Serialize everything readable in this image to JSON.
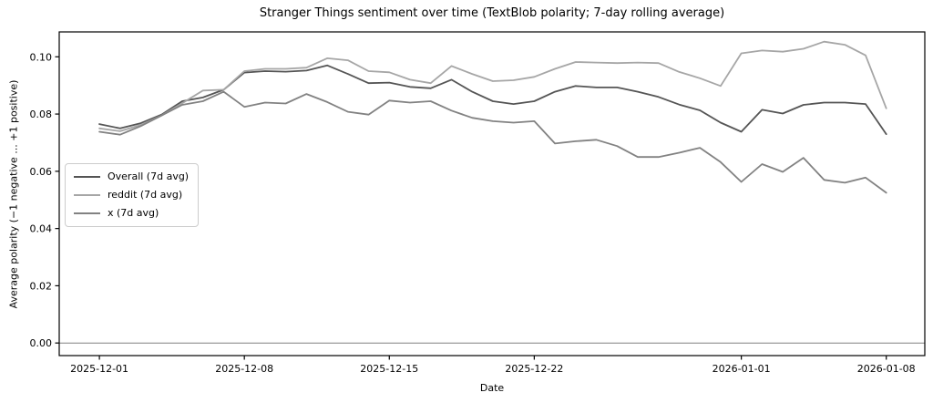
{
  "chart_data": {
    "type": "line",
    "title": "Stranger Things sentiment over time (TextBlob polarity; 7-day rolling average)",
    "xlabel": "Date",
    "ylabel": "Average polarity (−1 negative ... +1 positive)",
    "x_dates": [
      "2025-12-01",
      "2025-12-02",
      "2025-12-03",
      "2025-12-04",
      "2025-12-05",
      "2025-12-06",
      "2025-12-07",
      "2025-12-08",
      "2025-12-09",
      "2025-12-10",
      "2025-12-11",
      "2025-12-12",
      "2025-12-13",
      "2025-12-14",
      "2025-12-15",
      "2025-12-16",
      "2025-12-17",
      "2025-12-18",
      "2025-12-19",
      "2025-12-20",
      "2025-12-21",
      "2025-12-22",
      "2025-12-23",
      "2025-12-24",
      "2025-12-25",
      "2025-12-26",
      "2025-12-27",
      "2025-12-28",
      "2025-12-29",
      "2025-12-30",
      "2025-12-31",
      "2026-01-01",
      "2026-01-02",
      "2026-01-03",
      "2026-01-04",
      "2026-01-05",
      "2026-01-06",
      "2026-01-07",
      "2026-01-08"
    ],
    "series": [
      {
        "name": "Overall (7d avg)",
        "color": "#555555",
        "values": [
          0.0765,
          0.075,
          0.0768,
          0.0798,
          0.0845,
          0.0858,
          0.0885,
          0.0945,
          0.095,
          0.0948,
          0.0952,
          0.097,
          0.094,
          0.0908,
          0.091,
          0.0895,
          0.089,
          0.092,
          0.0878,
          0.0845,
          0.0835,
          0.0845,
          0.0878,
          0.0898,
          0.0893,
          0.0893,
          0.0878,
          0.086,
          0.0833,
          0.0813,
          0.077,
          0.0738,
          0.0815,
          0.0802,
          0.0832,
          0.084,
          0.084,
          0.0835,
          0.073
        ]
      },
      {
        "name": "reddit (7d avg)",
        "color": "#a6a6a6",
        "values": [
          0.075,
          0.074,
          0.0762,
          0.0795,
          0.0838,
          0.0882,
          0.0885,
          0.095,
          0.0958,
          0.0958,
          0.0962,
          0.0995,
          0.0988,
          0.095,
          0.0946,
          0.092,
          0.0908,
          0.0968,
          0.094,
          0.0915,
          0.0918,
          0.093,
          0.0958,
          0.0982,
          0.098,
          0.0978,
          0.098,
          0.0978,
          0.0947,
          0.0925,
          0.0898,
          0.1012,
          0.1022,
          0.1018,
          0.1028,
          0.1053,
          0.1042,
          0.1005,
          0.082
        ]
      },
      {
        "name": "x (7d avg)",
        "color": "#828282",
        "values": [
          0.0738,
          0.0728,
          0.0758,
          0.0795,
          0.0832,
          0.0845,
          0.0878,
          0.0825,
          0.084,
          0.0837,
          0.087,
          0.0842,
          0.0808,
          0.0798,
          0.0847,
          0.084,
          0.0845,
          0.0812,
          0.0787,
          0.0775,
          0.077,
          0.0775,
          0.0697,
          0.0705,
          0.071,
          0.0688,
          0.065,
          0.065,
          0.0665,
          0.0682,
          0.0632,
          0.0563,
          0.0625,
          0.0598,
          0.0647,
          0.057,
          0.056,
          0.0578,
          0.0525
        ]
      }
    ],
    "xticks": [
      {
        "label": "2025-12-01",
        "day": 0
      },
      {
        "label": "2025-12-08",
        "day": 7
      },
      {
        "label": "2025-12-15",
        "day": 14
      },
      {
        "label": "2025-12-22",
        "day": 21
      },
      {
        "label": "2026-01-01",
        "day": 31
      },
      {
        "label": "2026-01-08",
        "day": 38
      }
    ],
    "yticks": [
      {
        "label": "0.00",
        "value": 0.0
      },
      {
        "label": "0.02",
        "value": 0.02
      },
      {
        "label": "0.04",
        "value": 0.04
      },
      {
        "label": "0.06",
        "value": 0.06
      },
      {
        "label": "0.08",
        "value": 0.08
      },
      {
        "label": "0.10",
        "value": 0.1
      }
    ],
    "ylim": [
      -0.0044,
      0.1087
    ],
    "xlim_days": [
      -1.94,
      39.86
    ],
    "grid": false,
    "zero_line": {
      "value": 0.0,
      "color": "#808080"
    },
    "legend": {
      "position": "center-left"
    },
    "axis_color": "#000000",
    "tick_label_color": "#000000"
  }
}
